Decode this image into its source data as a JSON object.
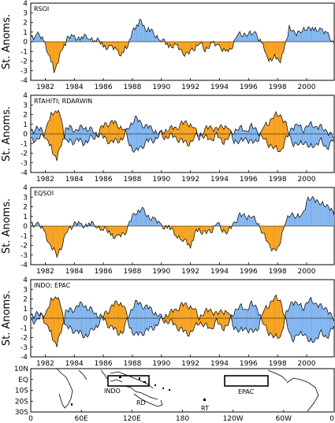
{
  "colors": {
    "positive": "#7fb3ee",
    "negative": "#f59f1b",
    "line": "#000000"
  },
  "chart_data": [
    {
      "type": "area",
      "title": "RSOI",
      "ylabel": "St. Anoms.",
      "ylim": [
        -4,
        4
      ],
      "yticks": [
        "4",
        "3",
        "2",
        "1",
        "0",
        "-1",
        "-2",
        "-3",
        "-4"
      ],
      "xticks": [
        "1982",
        "1984",
        "1986",
        "1988",
        "1990",
        "1992",
        "1994",
        "1996",
        "1998",
        "2000"
      ],
      "x": [
        1981.0,
        1981.5,
        1982.0,
        1982.3,
        1982.6,
        1982.9,
        1983.2,
        1983.5,
        1984.0,
        1984.5,
        1985.0,
        1985.5,
        1986.0,
        1986.5,
        1987.0,
        1987.3,
        1987.6,
        1987.9,
        1988.2,
        1988.5,
        1988.8,
        1989.1,
        1989.5,
        1990.0,
        1990.5,
        1991.0,
        1991.4,
        1991.8,
        1992.2,
        1992.6,
        1993.0,
        1993.5,
        1994.0,
        1994.5,
        1994.8,
        1995.2,
        1995.6,
        1996.0,
        1996.5,
        1997.0,
        1997.3,
        1997.6,
        1997.9,
        1998.2,
        1998.5,
        1998.8,
        1999.2,
        1999.6,
        2000.0,
        2000.5,
        2001.0,
        2001.5,
        2001.9
      ],
      "series": [
        {
          "values": [
            0.5,
            0.8,
            -0.3,
            -1.5,
            -3.0,
            -2.0,
            -0.7,
            0.3,
            0.5,
            0.4,
            0.5,
            0.2,
            -0.4,
            -0.6,
            -1.0,
            -1.3,
            -0.5,
            0.5,
            1.5,
            2.1,
            1.6,
            1.2,
            0.9,
            0.1,
            -0.3,
            -0.5,
            -1.0,
            -1.4,
            -0.7,
            -0.2,
            -0.7,
            -0.3,
            -0.4,
            -1.2,
            -0.6,
            0.6,
            0.9,
            0.7,
            1.0,
            -0.6,
            -1.5,
            -2.0,
            -1.4,
            -2.3,
            -0.3,
            1.3,
            1.0,
            0.9,
            1.6,
            1.1,
            1.4,
            0.5,
            -0.2
          ]
        }
      ]
    },
    {
      "type": "area",
      "title": "RTAHITI; RDARWIN",
      "ylabel": "St. Anoms.",
      "ylim": [
        -4,
        4
      ],
      "yticks": [
        "4",
        "3",
        "2",
        "1",
        "0",
        "-1",
        "-2",
        "-3",
        "-4"
      ],
      "xticks": [
        "1982",
        "1984",
        "1986",
        "1988",
        "1990",
        "1992",
        "1994",
        "1996",
        "1998",
        "2000"
      ],
      "x": [
        1981.0,
        1981.4,
        1981.8,
        1982.2,
        1982.5,
        1982.8,
        1983.1,
        1983.4,
        1983.8,
        1984.2,
        1984.6,
        1985.0,
        1985.4,
        1985.8,
        1986.2,
        1986.6,
        1987.0,
        1987.4,
        1987.8,
        1988.2,
        1988.6,
        1989.0,
        1989.4,
        1989.8,
        1990.2,
        1990.6,
        1991.0,
        1991.4,
        1991.8,
        1992.2,
        1992.6,
        1993.0,
        1993.4,
        1993.8,
        1994.2,
        1994.6,
        1995.0,
        1995.4,
        1995.8,
        1996.2,
        1996.6,
        1997.0,
        1997.4,
        1997.8,
        1998.2,
        1998.6,
        1999.0,
        1999.4,
        1999.8,
        2000.2,
        2000.6,
        2001.0,
        2001.4,
        2001.9
      ],
      "series": [
        {
          "name": "RTAHITI",
          "values": [
            0.3,
            0.6,
            0.2,
            -0.8,
            -1.8,
            -2.6,
            -1.2,
            0.4,
            0.6,
            0.3,
            0.8,
            0.5,
            0.2,
            -0.2,
            -0.6,
            -0.9,
            -0.7,
            -0.3,
            0.9,
            1.6,
            1.1,
            0.7,
            0.5,
            0.1,
            -0.3,
            -0.2,
            -0.4,
            -0.8,
            -1.0,
            -0.6,
            0.2,
            -0.4,
            -0.6,
            -0.2,
            -0.8,
            -0.5,
            0.4,
            0.6,
            0.3,
            0.7,
            0.4,
            -0.5,
            -1.0,
            -1.5,
            -1.8,
            -0.6,
            0.7,
            0.9,
            0.5,
            1.0,
            0.8,
            0.6,
            0.3,
            -0.4
          ]
        },
        {
          "name": "RDARWIN",
          "values": [
            -0.4,
            -0.7,
            -0.3,
            1.2,
            2.2,
            2.4,
            1.6,
            -0.8,
            -0.9,
            -0.6,
            -1.0,
            -0.5,
            -0.4,
            0.5,
            1.0,
            1.2,
            0.9,
            0.6,
            -1.0,
            -1.9,
            -1.4,
            -0.8,
            -0.7,
            -0.2,
            0.4,
            0.5,
            0.6,
            1.0,
            1.2,
            0.7,
            -0.3,
            0.4,
            0.8,
            0.3,
            0.9,
            0.6,
            -0.6,
            -0.9,
            -0.4,
            -1.0,
            -0.7,
            0.6,
            1.3,
            1.9,
            2.0,
            0.8,
            -0.9,
            -1.2,
            -0.7,
            -1.4,
            -1.1,
            -0.8,
            -1.5,
            -0.5
          ]
        }
      ]
    },
    {
      "type": "area",
      "title": "EQSOI",
      "ylabel": "St. Anoms.",
      "ylim": [
        -4,
        4
      ],
      "yticks": [
        "4",
        "3",
        "2",
        "1",
        "0",
        "-1",
        "-2",
        "-3",
        "-4"
      ],
      "xticks": [
        "1982",
        "1984",
        "1986",
        "1988",
        "1990",
        "1992",
        "1994",
        "1996",
        "1998",
        "2000"
      ],
      "x": [
        1981.0,
        1981.5,
        1982.0,
        1982.4,
        1982.8,
        1983.2,
        1983.6,
        1984.0,
        1984.5,
        1985.0,
        1985.5,
        1986.0,
        1986.5,
        1987.0,
        1987.4,
        1987.8,
        1988.2,
        1988.6,
        1989.0,
        1989.5,
        1990.0,
        1990.5,
        1991.0,
        1991.5,
        1992.0,
        1992.3,
        1992.6,
        1993.0,
        1993.4,
        1993.8,
        1994.2,
        1994.6,
        1995.0,
        1995.4,
        1995.8,
        1996.2,
        1996.6,
        1997.0,
        1997.4,
        1997.8,
        1998.1,
        1998.5,
        1998.9,
        1999.3,
        1999.7,
        2000.1,
        2000.5,
        2000.9,
        2001.3,
        2001.9
      ],
      "series": [
        {
          "values": [
            0.3,
            0.2,
            -0.8,
            -2.2,
            -3.0,
            -1.8,
            -0.2,
            0.2,
            0.1,
            0.2,
            0.1,
            -0.3,
            -0.8,
            -1.2,
            -0.9,
            0.3,
            1.4,
            1.8,
            1.2,
            0.6,
            0.1,
            -0.2,
            -0.8,
            -1.5,
            -2.0,
            -0.9,
            -0.3,
            -0.8,
            -0.5,
            0.3,
            -0.3,
            -0.7,
            0.4,
            1.0,
            1.1,
            0.9,
            0.6,
            -0.9,
            -1.8,
            -2.8,
            -1.9,
            0.1,
            1.5,
            0.8,
            1.3,
            2.6,
            3.0,
            2.2,
            2.4,
            1.1
          ]
        }
      ]
    },
    {
      "type": "area",
      "title": "INDO; EPAC",
      "ylabel": "St. Anoms.",
      "ylim": [
        -4,
        4
      ],
      "yticks": [
        "4",
        "3",
        "2",
        "1",
        "0",
        "-1",
        "-2",
        "-3",
        "-4"
      ],
      "xticks": [
        "1982",
        "1984",
        "1986",
        "1988",
        "1990",
        "1992",
        "1994",
        "1996",
        "1998",
        "2000"
      ],
      "x": [
        1981.0,
        1981.4,
        1981.8,
        1982.2,
        1982.5,
        1982.8,
        1983.1,
        1983.4,
        1983.8,
        1984.2,
        1984.6,
        1985.0,
        1985.4,
        1985.8,
        1986.2,
        1986.6,
        1987.0,
        1987.4,
        1987.8,
        1988.2,
        1988.6,
        1989.0,
        1989.4,
        1989.8,
        1990.2,
        1990.6,
        1991.0,
        1991.4,
        1991.8,
        1992.2,
        1992.6,
        1993.0,
        1993.4,
        1993.8,
        1994.2,
        1994.6,
        1995.0,
        1995.4,
        1995.8,
        1996.2,
        1996.6,
        1997.0,
        1997.4,
        1997.8,
        1998.2,
        1998.6,
        1999.0,
        1999.4,
        1999.8,
        2000.2,
        2000.6,
        2001.0,
        2001.4,
        2001.9
      ],
      "series": [
        {
          "name": "INDO",
          "values": [
            0.3,
            0.5,
            0.1,
            -0.9,
            -2.0,
            -2.8,
            -1.4,
            0.6,
            0.8,
            1.2,
            1.5,
            1.0,
            0.6,
            0.2,
            -0.5,
            -1.0,
            -1.5,
            -1.3,
            0.6,
            1.6,
            1.4,
            1.1,
            0.8,
            0.3,
            -0.2,
            -0.4,
            -0.8,
            -1.3,
            -1.6,
            -1.2,
            -0.3,
            -0.8,
            -1.1,
            -0.4,
            -1.0,
            -0.7,
            0.8,
            1.2,
            0.9,
            1.4,
            1.1,
            -0.6,
            -1.4,
            -2.0,
            -1.9,
            0.4,
            1.8,
            1.4,
            1.2,
            1.9,
            1.6,
            1.1,
            1.0,
            -0.3
          ]
        },
        {
          "name": "EPAC",
          "values": [
            -0.2,
            -0.3,
            0.2,
            1.0,
            2.1,
            2.2,
            1.1,
            -0.9,
            -1.2,
            -1.4,
            -1.8,
            -1.6,
            -1.0,
            -0.3,
            0.6,
            1.2,
            1.7,
            1.4,
            -0.8,
            -1.8,
            -1.6,
            -1.3,
            -1.0,
            -0.5,
            0.3,
            0.5,
            0.9,
            1.3,
            1.4,
            1.0,
            0.2,
            0.6,
            0.9,
            0.3,
            0.8,
            0.6,
            -0.8,
            -1.4,
            -1.0,
            -1.5,
            -1.2,
            0.6,
            1.5,
            2.1,
            1.9,
            -0.6,
            -2.2,
            -1.8,
            -1.4,
            -2.5,
            -2.2,
            -1.6,
            -2.0,
            -0.8
          ]
        }
      ]
    }
  ],
  "map": {
    "yticks": [
      "10N",
      "EQ",
      "10S",
      "20S",
      "30S"
    ],
    "xticks": [
      "0",
      "60E",
      "120E",
      "180",
      "120W",
      "60W",
      "0"
    ],
    "labels": {
      "indo": "INDO",
      "rd": "RD",
      "rt": "RT",
      "epac": "EPAC"
    }
  }
}
